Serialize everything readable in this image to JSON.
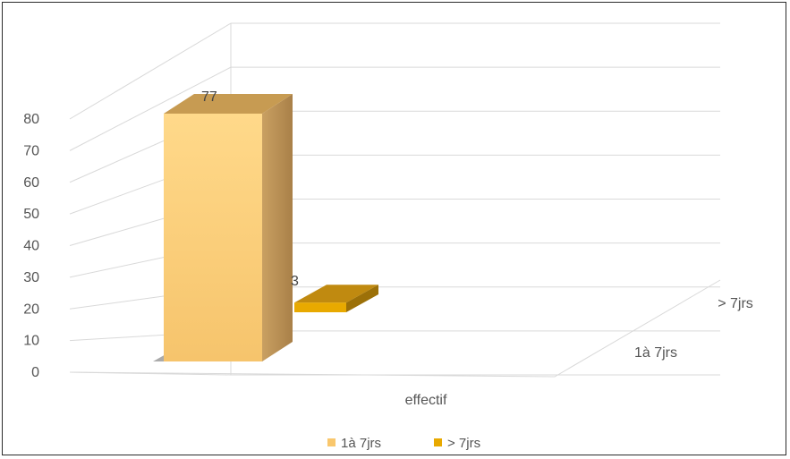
{
  "chart_data": {
    "type": "bar",
    "projection": "3d",
    "title": "",
    "xlabel": "",
    "ylabel": "",
    "categories": [
      "effectif"
    ],
    "depth_labels": [
      "1à 7jrs",
      "> 7jrs"
    ],
    "series": [
      {
        "name": "1à 7jrs",
        "values": [
          77
        ],
        "color": "#F9C76D"
      },
      {
        "name": "> 7jrs",
        "values": [
          3
        ],
        "color": "#E8A900"
      }
    ],
    "data_labels": [
      "77",
      "3"
    ],
    "y_ticks": [
      "0",
      "10",
      "20",
      "30",
      "40",
      "50",
      "60",
      "70",
      "80"
    ],
    "ylim": [
      0,
      80
    ],
    "grid": true,
    "legend": {
      "position": "bottom"
    }
  }
}
